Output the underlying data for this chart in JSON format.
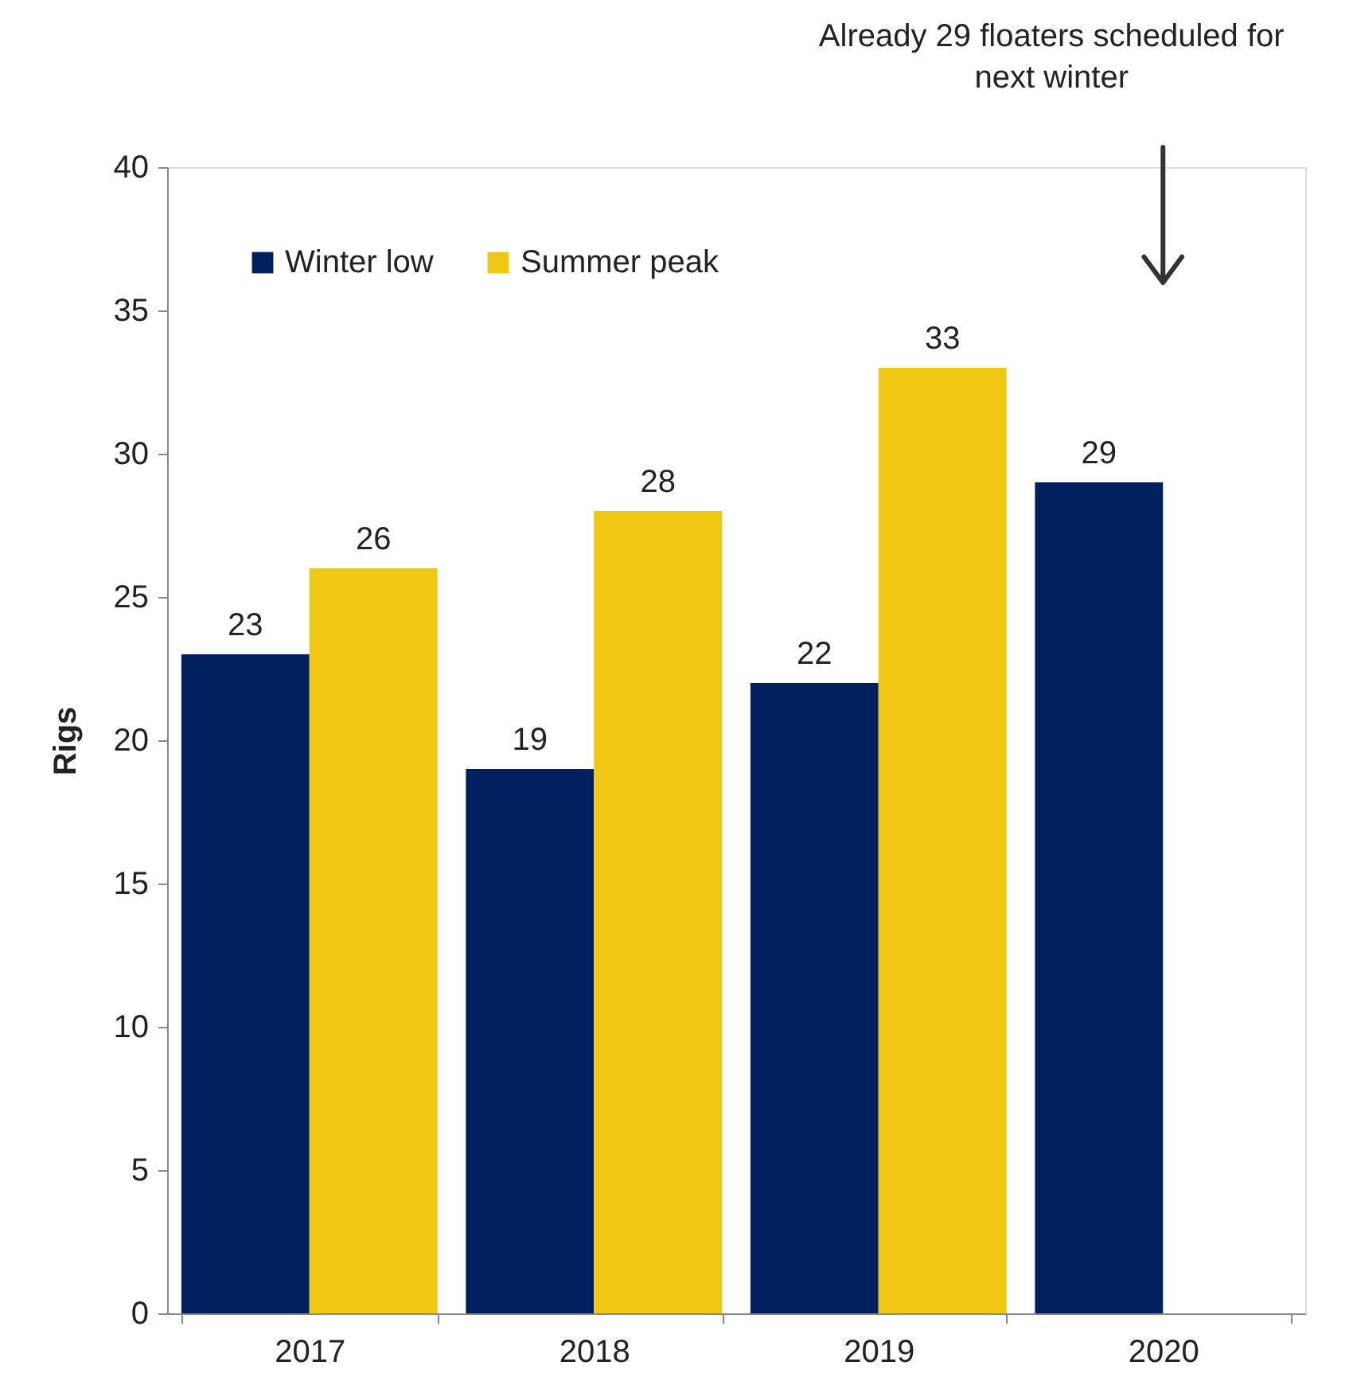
{
  "chart_data": {
    "type": "bar",
    "ylabel": "Rigs",
    "categories": [
      "2017",
      "2018",
      "2019",
      "2020"
    ],
    "series": [
      {
        "name": "Winter low",
        "color": "#002060",
        "values": [
          23,
          19,
          22,
          29
        ]
      },
      {
        "name": "Summer peak",
        "color": "#f0c814",
        "values": [
          26,
          28,
          33,
          null
        ]
      }
    ],
    "ylim": [
      0,
      40
    ],
    "yticks": [
      0,
      5,
      10,
      15,
      20,
      25,
      30,
      35,
      40
    ],
    "data_labels": true,
    "grid": false,
    "legend": "top left",
    "annotations": [
      "Already 29 floaters scheduled for\nnext winter"
    ]
  }
}
